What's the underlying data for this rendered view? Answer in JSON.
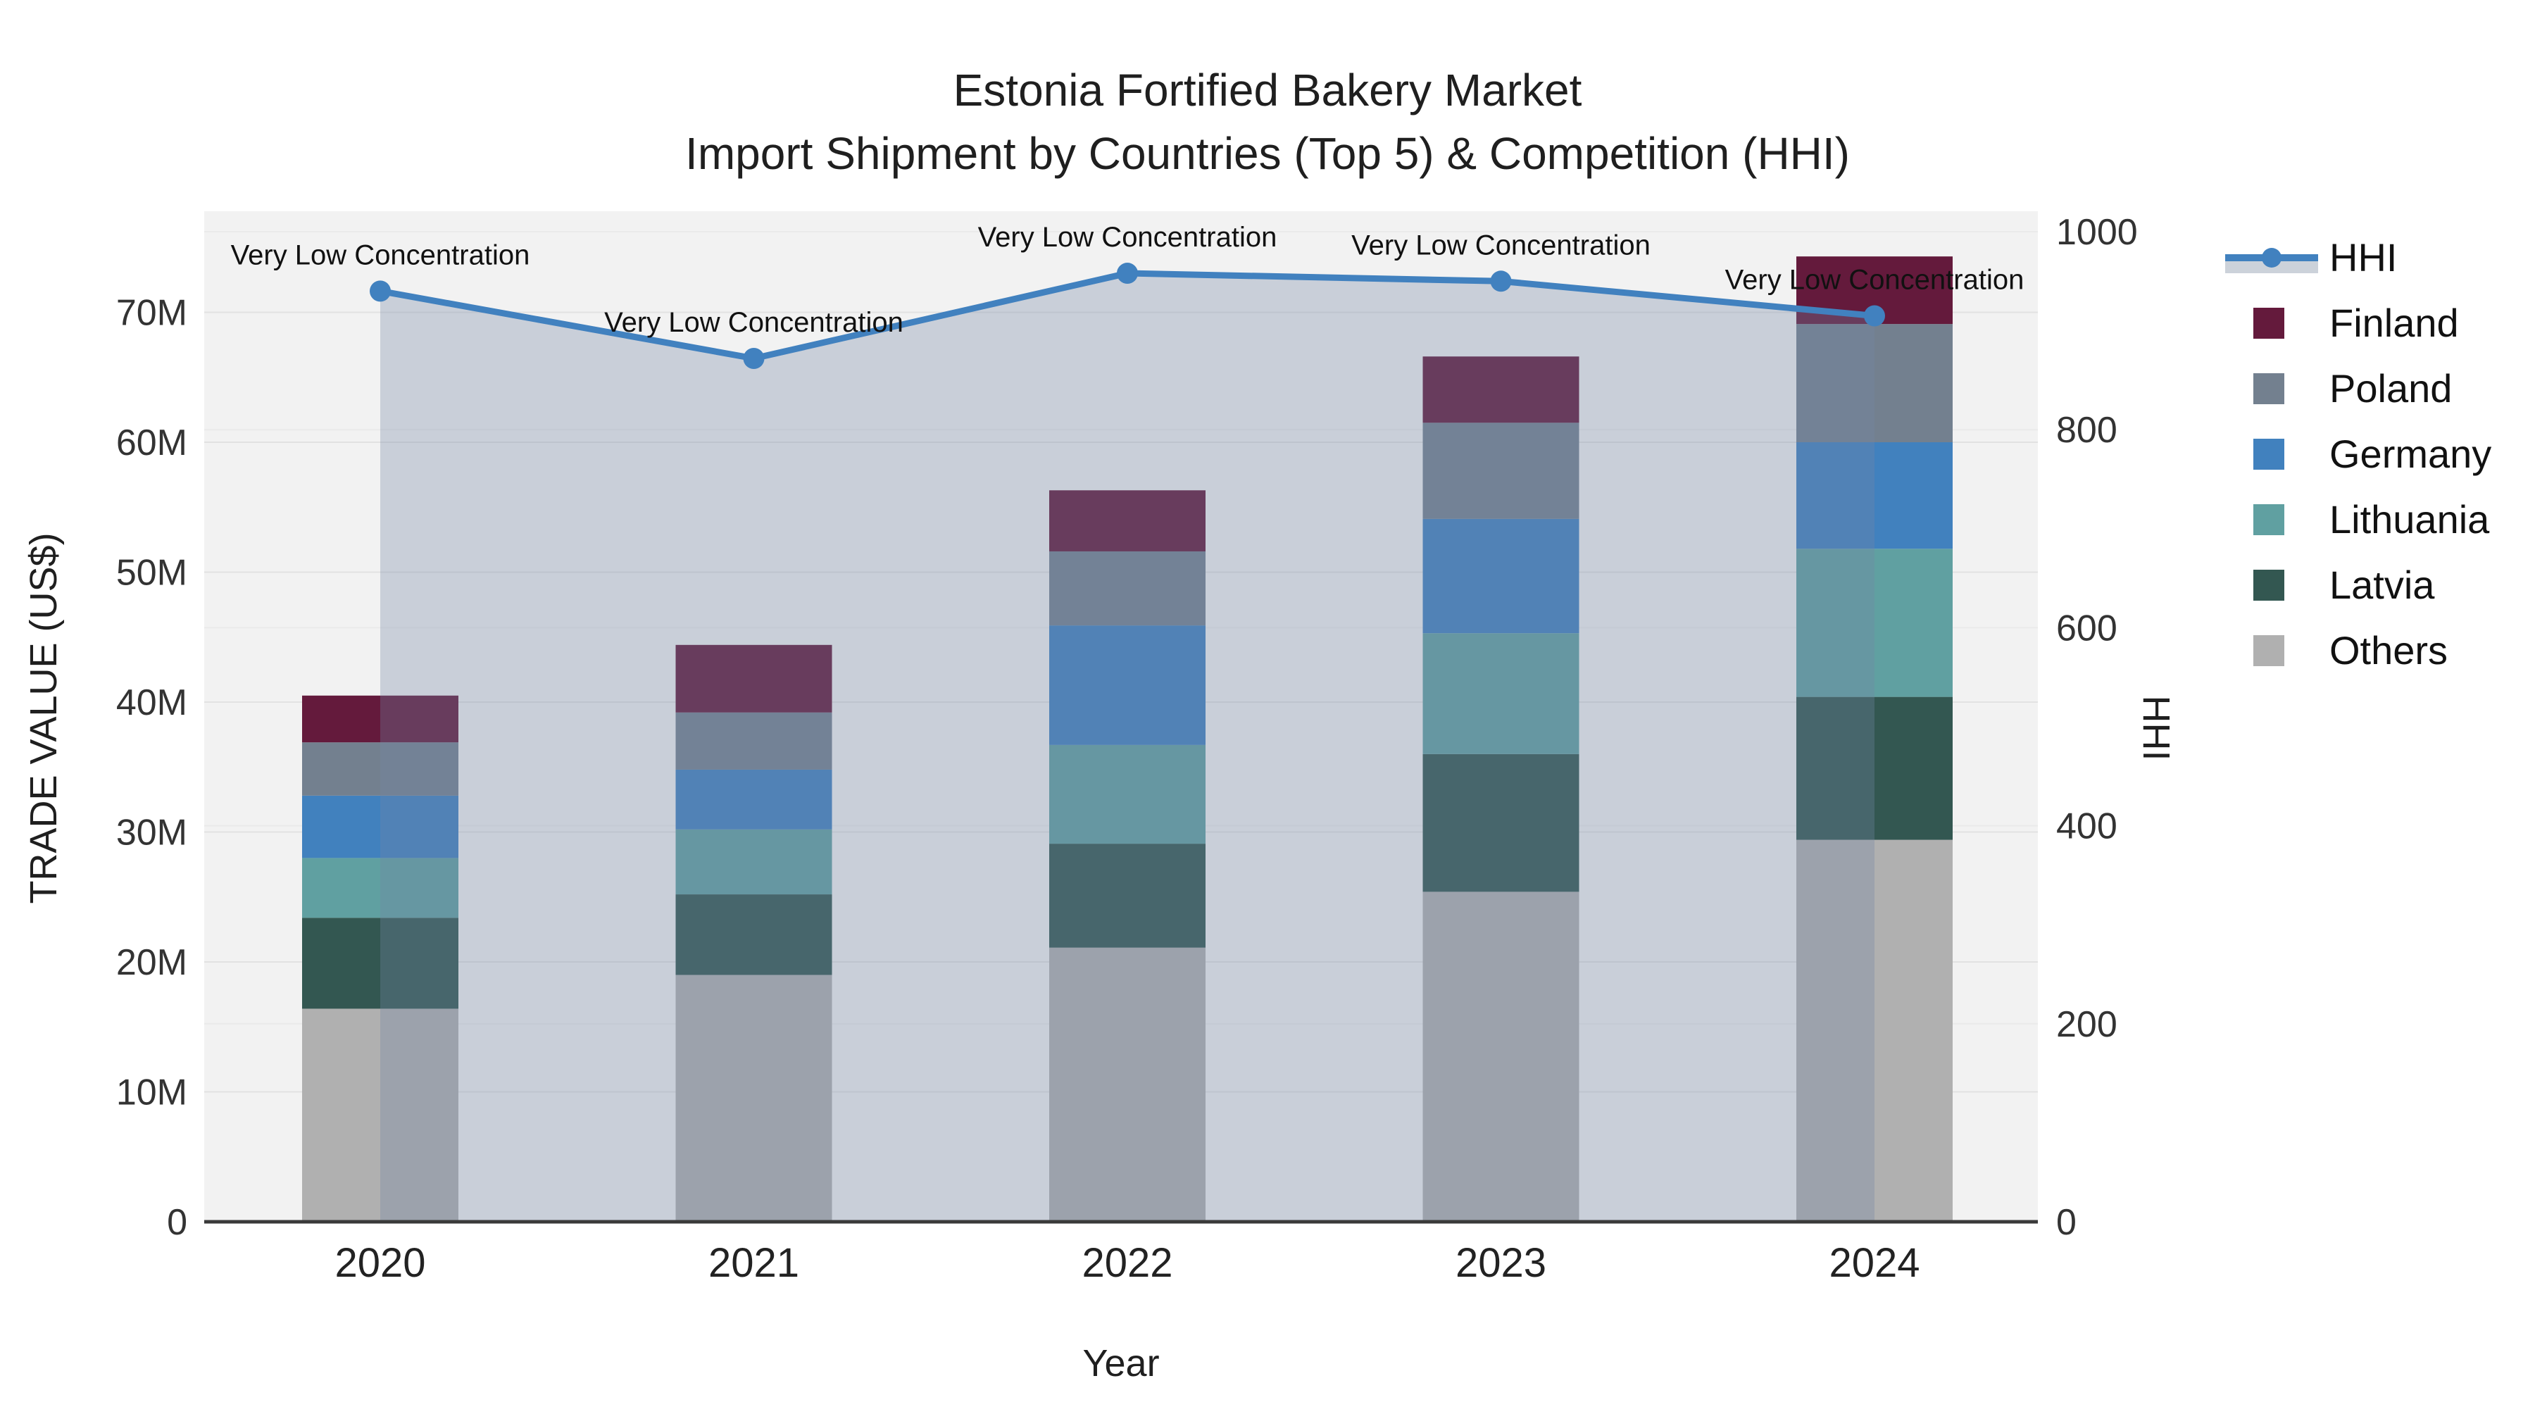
{
  "title": {
    "line1": "Estonia Fortified Bakery Market",
    "line2": "Import Shipment by Countries (Top 5) & Competition (HHI)"
  },
  "axes": {
    "y_left": {
      "title": "TRADE VALUE (US$)",
      "ticks": [
        "0",
        "10M",
        "20M",
        "30M",
        "40M",
        "50M",
        "60M",
        "70M"
      ],
      "tick_step_millions": 10
    },
    "y_right": {
      "title": "HHI",
      "ticks": [
        "0",
        "200",
        "400",
        "600",
        "800",
        "1000"
      ],
      "tick_step": 200
    },
    "x": {
      "title": "Year",
      "ticks": [
        "2020",
        "2021",
        "2022",
        "2023",
        "2024"
      ]
    }
  },
  "legend": {
    "items": [
      {
        "label": "HHI",
        "kind": "line",
        "color_key": "hhi_line"
      },
      {
        "label": "Finland",
        "kind": "swatch",
        "color_key": "finland"
      },
      {
        "label": "Poland",
        "kind": "swatch",
        "color_key": "poland"
      },
      {
        "label": "Germany",
        "kind": "swatch",
        "color_key": "germany"
      },
      {
        "label": "Lithuania",
        "kind": "swatch",
        "color_key": "lithuania"
      },
      {
        "label": "Latvia",
        "kind": "swatch",
        "color_key": "latvia"
      },
      {
        "label": "Others",
        "kind": "swatch",
        "color_key": "others"
      }
    ]
  },
  "chart_data": {
    "type": "stacked-bar+line",
    "categories": [
      "2020",
      "2021",
      "2022",
      "2023",
      "2024"
    ],
    "units": "million US$",
    "stack_order_bottom_to_top": [
      "Others",
      "Latvia",
      "Lithuania",
      "Germany",
      "Poland",
      "Finland"
    ],
    "series": [
      {
        "name": "Finland",
        "color_key": "finland",
        "values": [
          3.6,
          5.2,
          4.7,
          5.1,
          5.2
        ]
      },
      {
        "name": "Poland",
        "color_key": "poland",
        "values": [
          4.1,
          4.4,
          5.7,
          7.4,
          9.1
        ]
      },
      {
        "name": "Germany",
        "color_key": "germany",
        "values": [
          4.8,
          4.6,
          9.2,
          8.8,
          8.2
        ]
      },
      {
        "name": "Lithuania",
        "color_key": "lithuania",
        "values": [
          4.6,
          5.0,
          7.6,
          9.3,
          11.4
        ]
      },
      {
        "name": "Latvia",
        "color_key": "latvia",
        "values": [
          7.0,
          6.2,
          8.0,
          10.6,
          11.0
        ]
      },
      {
        "name": "Others",
        "color_key": "others",
        "values": [
          16.4,
          19.0,
          21.1,
          25.4,
          29.4
        ]
      }
    ],
    "bar_totals": [
      40.5,
      44.4,
      56.3,
      66.6,
      74.3
    ],
    "line_series": {
      "name": "HHI",
      "axis": "right",
      "values": [
        940,
        872,
        958,
        950,
        915
      ],
      "fill_to_zero": true
    },
    "point_labels": [
      "Very Low Concentration",
      "Very Low Concentration",
      "Very Low Concentration",
      "Very Low Concentration",
      "Very Low Concentration"
    ],
    "title": "Estonia Fortified Bakery Market — Import Shipment by Countries (Top 5) & Competition (HHI)",
    "xlabel": "Year",
    "ylabel": "TRADE VALUE (US$)",
    "ylabel_right": "HHI",
    "ylim_left_millions": [
      0,
      78
    ],
    "ylim_right": [
      0,
      1020
    ],
    "grid": true,
    "legend_position": "right"
  },
  "colors": {
    "hhi_line": "#4181bf",
    "hhi_fill": "rgba(115,135,165,0.32)",
    "finland": "#641a3c",
    "poland": "#73808f",
    "germany": "#4181be",
    "lithuania": "#60a0a1",
    "latvia": "#335751",
    "others": "#b0b0b0",
    "plot_bg": "#f2f2f2",
    "grid_left": "#e2e2e2",
    "grid_right": "#eaeaea",
    "axis_line": "#3a3a3a",
    "legend_fill_band": "#ccd2da",
    "text": "#1f1f1f"
  }
}
